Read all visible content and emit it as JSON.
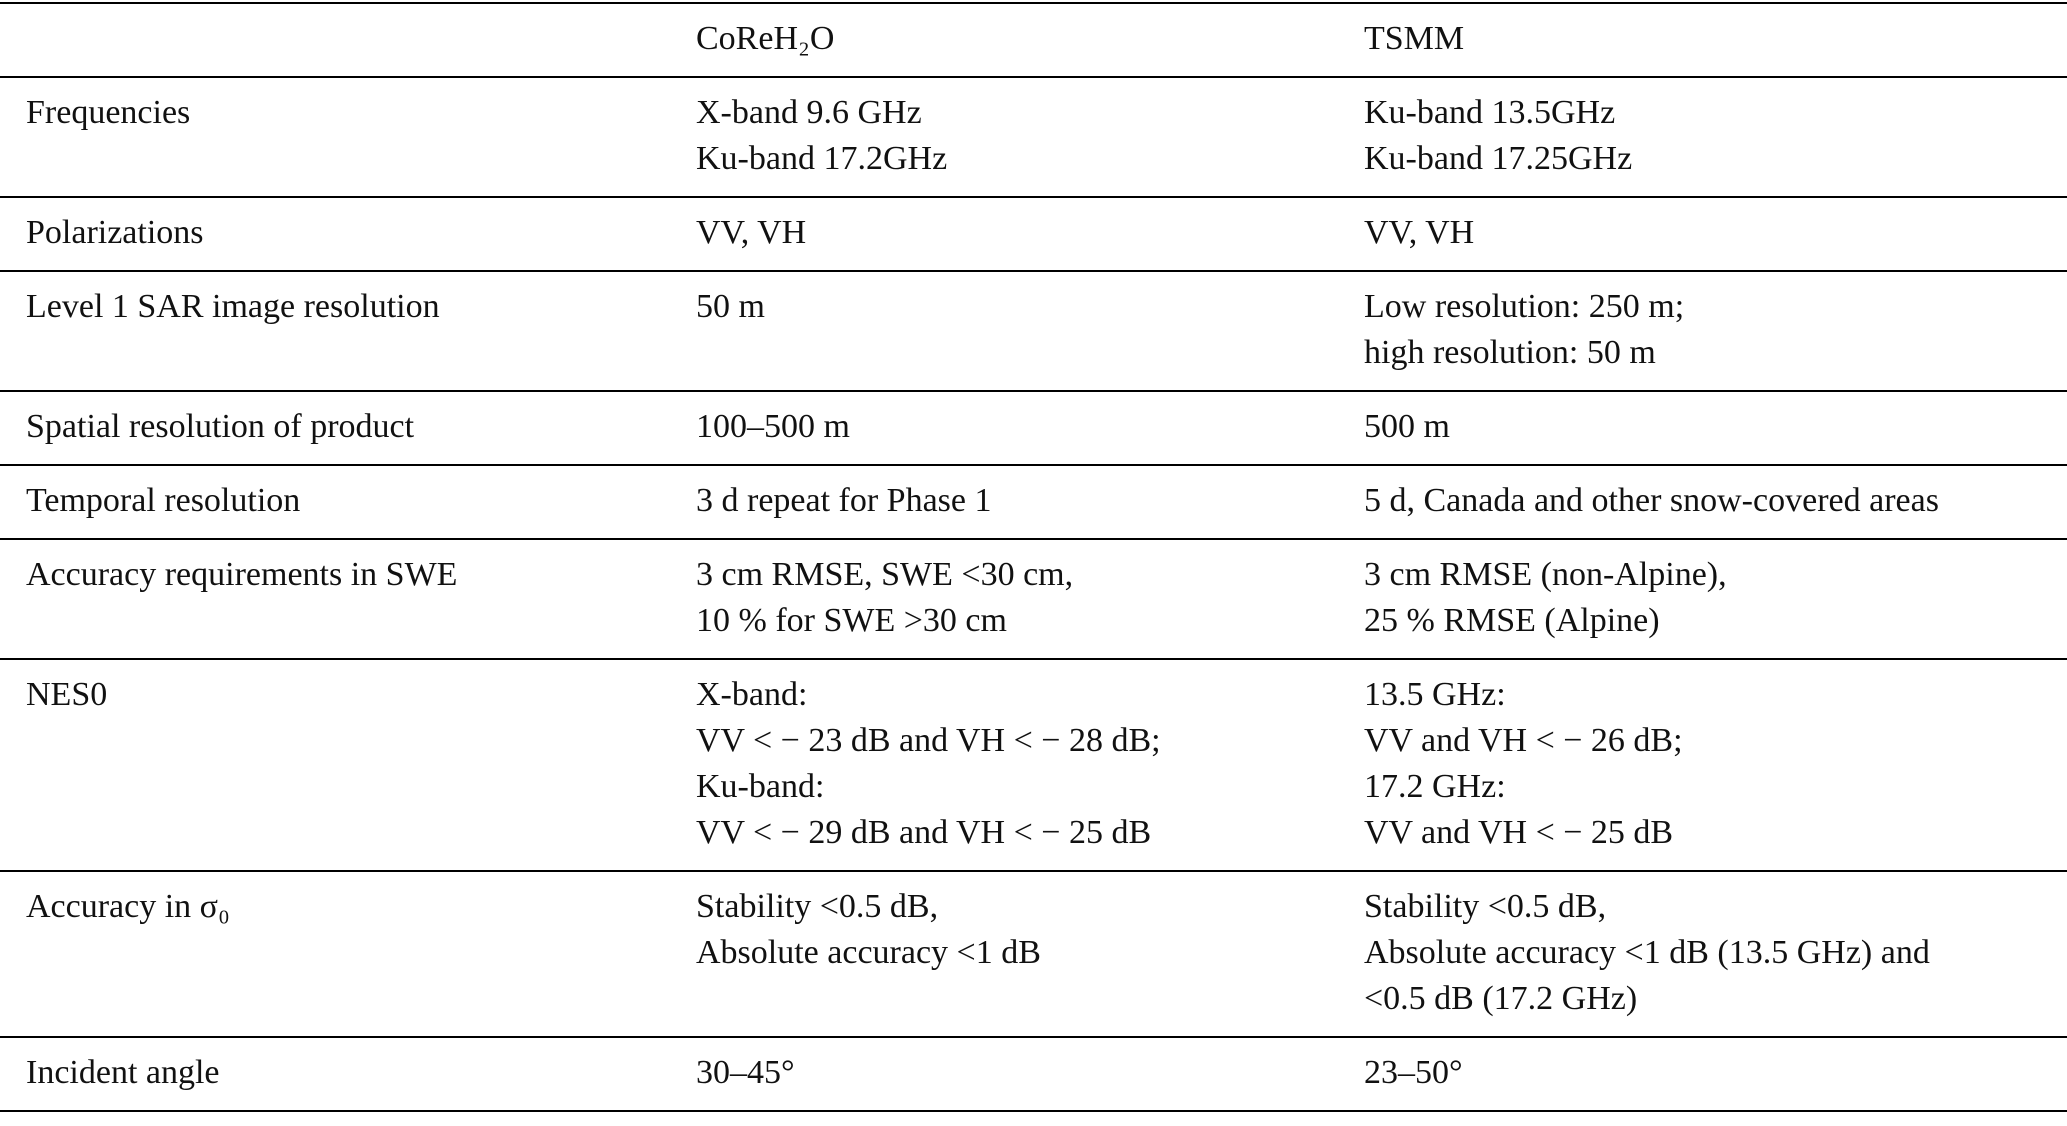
{
  "table": {
    "header": [
      "CoReH₂O",
      "TSMM"
    ],
    "rows": [
      {
        "label": "Frequencies",
        "cells": [
          [
            "X-band 9.6 GHz",
            "Ku-band 17.2GHz"
          ],
          [
            "Ku-band 13.5GHz",
            "Ku-band 17.25GHz"
          ]
        ]
      },
      {
        "label": "Polarizations",
        "cells": [
          [
            "VV, VH"
          ],
          [
            "VV, VH"
          ]
        ]
      },
      {
        "label": "Level 1 SAR image resolution",
        "cells": [
          [
            "50 m"
          ],
          [
            "Low resolution: 250 m;",
            "high resolution: 50 m"
          ]
        ]
      },
      {
        "label": "Spatial resolution of product",
        "cells": [
          [
            "100–500 m"
          ],
          [
            "500 m"
          ]
        ]
      },
      {
        "label": "Temporal resolution",
        "cells": [
          [
            "3 d repeat for Phase 1"
          ],
          [
            "5 d, Canada and other snow-covered areas"
          ]
        ]
      },
      {
        "label": "Accuracy requirements in SWE",
        "cells": [
          [
            "3 cm RMSE, SWE <30 cm,",
            "10 % for SWE >30 cm"
          ],
          [
            "3 cm RMSE (non-Alpine),",
            "25 % RMSE (Alpine)"
          ]
        ]
      },
      {
        "label": "NES0",
        "cells": [
          [
            "X-band:",
            "VV < − 23 dB and VH < − 28 dB;",
            "Ku-band:",
            "VV < − 29 dB and VH < − 25 dB"
          ],
          [
            "13.5 GHz:",
            "VV and VH < − 26 dB;",
            "17.2 GHz:",
            "VV and VH < − 25 dB"
          ]
        ]
      },
      {
        "label": "Accuracy in σ₀",
        "cells": [
          [
            "Stability <0.5 dB,",
            "Absolute accuracy <1 dB"
          ],
          [
            "Stability <0.5 dB,",
            "Absolute accuracy <1 dB (13.5 GHz) and",
            "<0.5 dB (17.2 GHz)"
          ]
        ]
      },
      {
        "label": "Incident angle",
        "cells": [
          [
            "30–45°"
          ],
          [
            "23–50°"
          ]
        ]
      }
    ]
  }
}
